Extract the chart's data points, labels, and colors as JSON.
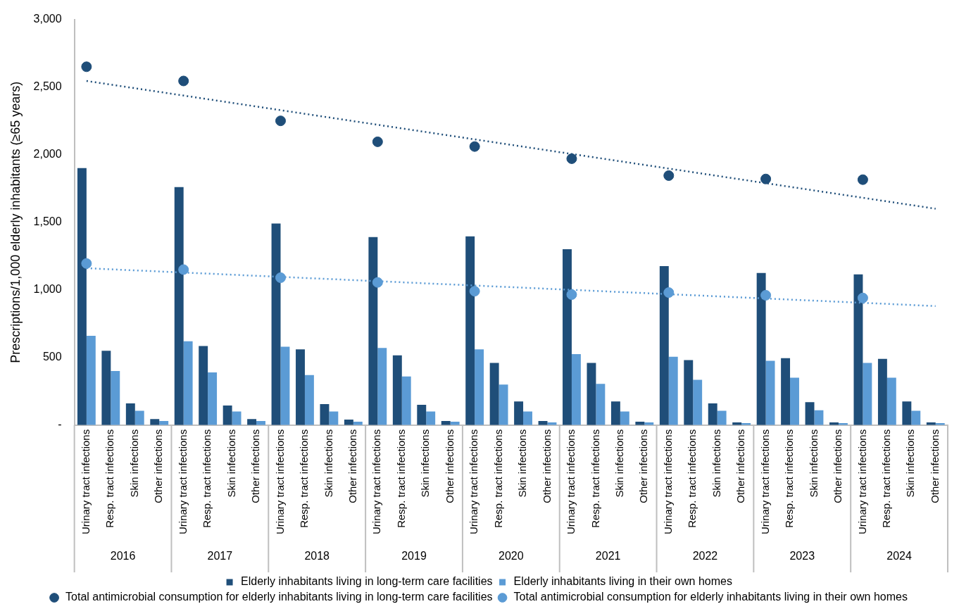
{
  "chart_data": {
    "type": "bar",
    "ylabel": "Prescriptions/1,000 elderly inhabitants (≥65 years)",
    "categories": [
      "Urinary tract infections",
      "Resp. tract infections",
      "Skin infections",
      "Other infections",
      "Urinary tract infections",
      "Resp. tract infections",
      "Skin infections",
      "Other infections",
      "Urinary tract infections",
      "Resp. tract infections",
      "Skin infections",
      "Other infections",
      "Urinary tract infections",
      "Resp. tract infections",
      "Skin infections",
      "Other infections",
      "Urinary tract infections",
      "Resp. tract infections",
      "Skin infections",
      "Other infections",
      "Urinary tract infections",
      "Resp. tract infections",
      "Skin infections",
      "Other infections",
      "Urinary tract infections",
      "Resp. tract infections",
      "Skin infections",
      "Other infections",
      "Urinary tract infections",
      "Resp. tract infections",
      "Skin infections",
      "Other infections",
      "Urinary tract infections",
      "Resp. tract infections",
      "Skin infections",
      "Other infections"
    ],
    "annotations": [
      "2016",
      "2017",
      "2018",
      "2019",
      "2020",
      "2021",
      "2022",
      "2023",
      "2024"
    ],
    "series": [
      {
        "name": "Elderly inhabitants living in long-term care facilities",
        "color": "#1f4e79",
        "values": [
          1900,
          550,
          160,
          45,
          1760,
          585,
          145,
          45,
          1490,
          560,
          155,
          40,
          1390,
          515,
          150,
          30,
          1395,
          460,
          175,
          30,
          1300,
          460,
          175,
          25,
          1175,
          480,
          160,
          20,
          1125,
          495,
          170,
          20,
          1115,
          490,
          175,
          20
        ]
      },
      {
        "name": "Elderly inhabitants living in their own homes",
        "color": "#5b9bd5",
        "values": [
          660,
          400,
          105,
          30,
          620,
          390,
          100,
          30,
          580,
          370,
          100,
          25,
          570,
          360,
          100,
          25,
          560,
          300,
          100,
          20,
          525,
          305,
          100,
          20,
          505,
          335,
          105,
          15,
          475,
          350,
          110,
          15,
          460,
          350,
          105,
          15
        ]
      },
      {
        "name": "Total antimicrobial consumption for elderly inhabitants living in long-term care facilities",
        "type": "scatter",
        "marker": "circle",
        "color": "#1f4e79",
        "values": [
          2650,
          null,
          null,
          null,
          2545,
          null,
          null,
          null,
          2250,
          null,
          null,
          null,
          2095,
          null,
          null,
          null,
          2060,
          null,
          null,
          null,
          1970,
          null,
          null,
          null,
          1845,
          null,
          null,
          null,
          1820,
          null,
          null,
          null,
          1815,
          null,
          null,
          null
        ]
      },
      {
        "name": "Total antimicrobial consumption for elderly inhabitants living in their own homes",
        "type": "scatter",
        "marker": "circle",
        "color": "#5b9bd5",
        "values": [
          1195,
          null,
          null,
          null,
          1150,
          null,
          null,
          null,
          1090,
          null,
          null,
          null,
          1055,
          null,
          null,
          null,
          990,
          null,
          null,
          null,
          965,
          null,
          null,
          null,
          980,
          null,
          null,
          null,
          960,
          null,
          null,
          null,
          940,
          null,
          null,
          null
        ]
      },
      {
        "type": "line",
        "line_style": "dotted",
        "color": "#1f4e79",
        "values": [
          2545,
          null,
          null,
          null,
          null,
          null,
          null,
          null,
          null,
          null,
          null,
          null,
          null,
          null,
          null,
          null,
          null,
          null,
          null,
          null,
          null,
          null,
          null,
          null,
          null,
          null,
          null,
          null,
          null,
          null,
          null,
          null,
          null,
          null,
          null,
          1600
        ]
      },
      {
        "type": "line",
        "line_style": "dotted",
        "color": "#5b9bd5",
        "values": [
          1160,
          null,
          null,
          null,
          null,
          null,
          null,
          null,
          null,
          null,
          null,
          null,
          null,
          null,
          null,
          null,
          null,
          null,
          null,
          null,
          null,
          null,
          null,
          null,
          null,
          null,
          null,
          null,
          null,
          null,
          null,
          null,
          null,
          null,
          null,
          880
        ]
      }
    ],
    "ylim": [
      0,
      3000
    ],
    "yticks": [
      {
        "value": 0,
        "label": "-"
      },
      500,
      {
        "value": 1000,
        "label": "1,000"
      },
      {
        "value": 1500,
        "label": "1,500"
      },
      {
        "value": 2000,
        "label": "2,000"
      },
      {
        "value": 2500,
        "label": "2,500"
      },
      {
        "value": 3000,
        "label": "3,000"
      }
    ],
    "grid": false,
    "legend": "bottom"
  }
}
